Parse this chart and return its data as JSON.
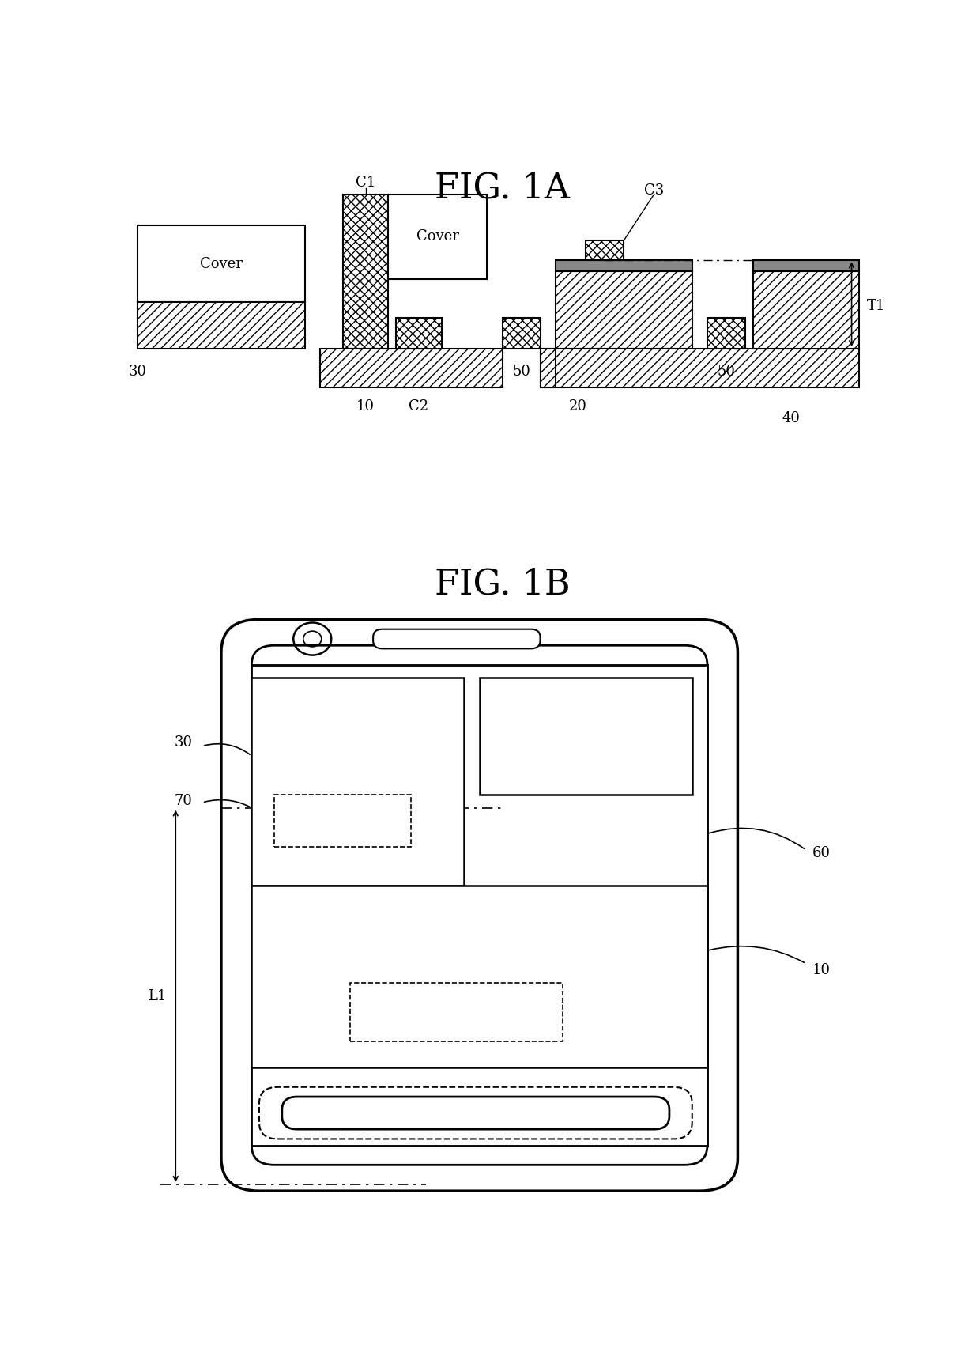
{
  "fig1a_title": "FIG. 1A",
  "fig1b_title": "FIG. 1B",
  "bg_color": "#ffffff",
  "label_30": "30",
  "label_10": "10",
  "label_20": "20",
  "label_40": "40",
  "label_50": "50",
  "label_C1": "C1",
  "label_C2": "C2",
  "label_C3": "C3",
  "label_T1": "T1",
  "label_L1": "L1",
  "label_60": "60",
  "label_70": "70",
  "label_cover": "Cover"
}
